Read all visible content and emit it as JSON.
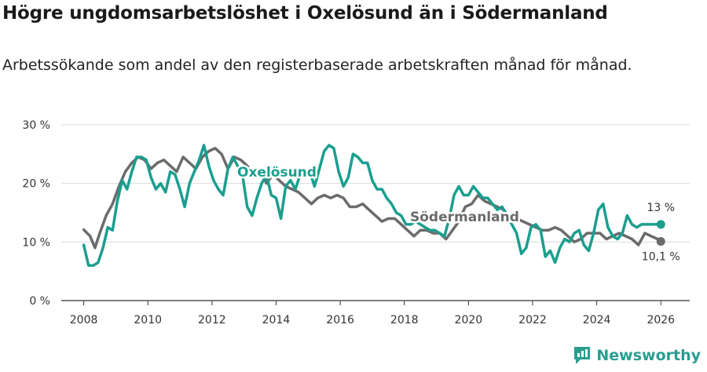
{
  "header": {
    "title": "Högre ungdomsarbetslöshet i Oxelösund än i Södermanland",
    "subtitle": "Arbetssökande som andel av den registerbaserade arbetskraften månad för månad."
  },
  "brand": {
    "name": "Newsworthy"
  },
  "colors": {
    "oxelosund": "#1a9e8f",
    "sodermanland": "#6b6b6b",
    "grid": "#d9d9d9",
    "axis": "#333333"
  },
  "chart_data": {
    "type": "line",
    "title": "Högre ungdomsarbetslöshet i Oxelösund än i Södermanland",
    "xlabel": "",
    "ylabel": "",
    "xlim": [
      2007.3,
      2026.9
    ],
    "ylim": [
      0,
      30
    ],
    "grid": true,
    "y_ticks": [
      0,
      10,
      20,
      30
    ],
    "y_tick_labels": [
      "0 %",
      "10 %",
      "20 %",
      "30 %"
    ],
    "x_ticks": [
      2008,
      2010,
      2012,
      2014,
      2016,
      2018,
      2020,
      2022,
      2024,
      2026
    ],
    "x_tick_labels": [
      "2008",
      "2010",
      "2012",
      "2014",
      "2016",
      "2018",
      "2020",
      "2022",
      "2024",
      "2026"
    ],
    "series": [
      {
        "name": "Södermanland",
        "label": "Södermanland",
        "end_label": "10,1 %",
        "x": [
          2008.0,
          2008.2,
          2008.35,
          2008.5,
          2008.7,
          2008.9,
          2009.1,
          2009.3,
          2009.5,
          2009.7,
          2009.9,
          2010.1,
          2010.3,
          2010.5,
          2010.7,
          2010.9,
          2011.1,
          2011.3,
          2011.5,
          2011.7,
          2011.9,
          2012.1,
          2012.3,
          2012.5,
          2012.7,
          2012.9,
          2013.1,
          2013.3,
          2013.5,
          2013.7,
          2013.9,
          2014.1,
          2014.3,
          2014.5,
          2014.7,
          2014.9,
          2015.1,
          2015.3,
          2015.5,
          2015.7,
          2015.9,
          2016.1,
          2016.3,
          2016.5,
          2016.7,
          2016.9,
          2017.1,
          2017.3,
          2017.5,
          2017.7,
          2017.9,
          2018.1,
          2018.3,
          2018.5,
          2018.7,
          2018.9,
          2019.1,
          2019.3,
          2019.5,
          2019.7,
          2019.9,
          2020.1,
          2020.3,
          2020.5,
          2020.7,
          2020.9,
          2021.1,
          2021.3,
          2021.5,
          2021.7,
          2021.9,
          2022.1,
          2022.3,
          2022.5,
          2022.7,
          2022.9,
          2023.1,
          2023.3,
          2023.5,
          2023.7,
          2023.9,
          2024.1,
          2024.3,
          2024.5,
          2024.7,
          2024.9,
          2025.1,
          2025.3,
          2025.5,
          2025.7,
          2025.9,
          2026.0
        ],
        "values": [
          12.1,
          11.0,
          9.0,
          11.5,
          14.5,
          16.5,
          19.5,
          22.0,
          23.5,
          24.5,
          24.0,
          22.5,
          23.5,
          24.0,
          23.0,
          22.0,
          24.5,
          23.5,
          22.5,
          24.5,
          25.5,
          26.0,
          25.0,
          22.5,
          24.5,
          24.0,
          23.0,
          21.5,
          22.5,
          20.0,
          21.5,
          20.5,
          19.5,
          19.0,
          18.5,
          17.5,
          16.5,
          17.5,
          18.0,
          17.5,
          18.0,
          17.5,
          16.0,
          16.0,
          16.5,
          15.5,
          14.5,
          13.5,
          14.0,
          14.0,
          13.0,
          12.0,
          11.0,
          12.0,
          12.0,
          11.5,
          11.5,
          10.5,
          12.0,
          13.5,
          16.0,
          16.5,
          18.0,
          17.0,
          16.5,
          16.0,
          15.5,
          14.0,
          14.0,
          13.5,
          13.0,
          12.5,
          12.0,
          12.0,
          12.5,
          12.0,
          11.0,
          10.0,
          10.5,
          11.5,
          11.5,
          11.5,
          10.5,
          11.0,
          11.5,
          11.0,
          10.5,
          9.5,
          11.5,
          11.0,
          10.5,
          10.1
        ]
      },
      {
        "name": "Oxelösund",
        "label": "Oxelösund",
        "end_label": "13 %",
        "x": [
          2008.0,
          2008.15,
          2008.3,
          2008.45,
          2008.6,
          2008.75,
          2008.9,
          2009.05,
          2009.2,
          2009.35,
          2009.5,
          2009.65,
          2009.8,
          2009.95,
          2010.1,
          2010.25,
          2010.4,
          2010.55,
          2010.7,
          2010.85,
          2011.0,
          2011.15,
          2011.3,
          2011.45,
          2011.6,
          2011.75,
          2011.9,
          2012.05,
          2012.2,
          2012.35,
          2012.5,
          2012.65,
          2012.8,
          2012.95,
          2013.1,
          2013.25,
          2013.4,
          2013.55,
          2013.7,
          2013.85,
          2014.0,
          2014.15,
          2014.3,
          2014.45,
          2014.6,
          2014.75,
          2014.9,
          2015.05,
          2015.2,
          2015.35,
          2015.5,
          2015.65,
          2015.8,
          2015.95,
          2016.1,
          2016.25,
          2016.4,
          2016.55,
          2016.7,
          2016.85,
          2017.0,
          2017.15,
          2017.3,
          2017.45,
          2017.6,
          2017.75,
          2017.9,
          2018.05,
          2018.2,
          2018.35,
          2018.5,
          2018.65,
          2018.8,
          2018.95,
          2019.1,
          2019.25,
          2019.4,
          2019.55,
          2019.7,
          2019.85,
          2020.0,
          2020.15,
          2020.3,
          2020.45,
          2020.6,
          2020.75,
          2020.9,
          2021.05,
          2021.2,
          2021.35,
          2021.5,
          2021.65,
          2021.8,
          2021.95,
          2022.1,
          2022.25,
          2022.4,
          2022.55,
          2022.7,
          2022.85,
          2023.0,
          2023.15,
          2023.3,
          2023.45,
          2023.6,
          2023.75,
          2023.9,
          2024.05,
          2024.2,
          2024.35,
          2024.5,
          2024.65,
          2024.8,
          2024.95,
          2025.1,
          2025.25,
          2025.4,
          2025.55,
          2025.7,
          2025.85,
          2026.0
        ],
        "values": [
          9.5,
          6.0,
          6.0,
          6.5,
          9.0,
          12.5,
          12.0,
          17.0,
          20.5,
          19.0,
          22.0,
          24.5,
          24.5,
          24.0,
          21.0,
          19.0,
          20.0,
          18.5,
          22.0,
          21.5,
          19.0,
          16.0,
          20.0,
          22.0,
          24.0,
          26.5,
          23.0,
          20.5,
          19.0,
          18.0,
          22.5,
          24.5,
          23.0,
          21.5,
          16.0,
          14.5,
          17.5,
          20.0,
          21.5,
          18.0,
          17.5,
          14.0,
          19.5,
          20.5,
          19.0,
          21.5,
          21.5,
          22.0,
          19.5,
          22.5,
          25.5,
          26.5,
          26.0,
          22.0,
          19.5,
          21.0,
          25.0,
          24.5,
          23.5,
          23.5,
          20.5,
          19.0,
          19.0,
          17.5,
          16.5,
          15.0,
          14.5,
          13.0,
          13.0,
          13.5,
          13.0,
          12.5,
          12.0,
          12.0,
          11.5,
          11.0,
          14.0,
          18.0,
          19.5,
          18.0,
          18.0,
          19.5,
          18.5,
          17.5,
          17.5,
          16.5,
          15.5,
          16.0,
          14.5,
          13.0,
          11.5,
          8.0,
          9.0,
          12.5,
          13.0,
          12.0,
          7.5,
          8.5,
          6.5,
          9.0,
          10.5,
          10.0,
          11.5,
          12.0,
          9.5,
          8.5,
          11.5,
          15.5,
          16.5,
          12.5,
          11.0,
          10.5,
          11.5,
          14.5,
          13.0,
          12.5,
          13.0,
          13.0,
          13.0,
          13.0,
          13.0
        ]
      }
    ]
  }
}
